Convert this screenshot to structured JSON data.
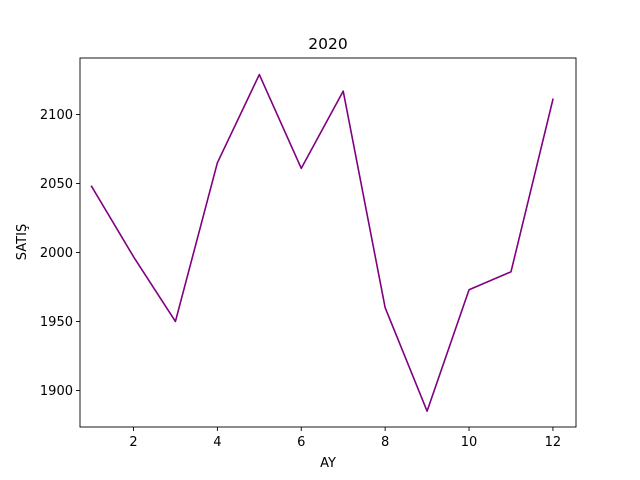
{
  "chart_data": {
    "type": "line",
    "title": "2020",
    "xlabel": "AY",
    "ylabel": "SATIŞ",
    "x": [
      1,
      2,
      3,
      4,
      5,
      6,
      7,
      8,
      9,
      10,
      11,
      12
    ],
    "series": [
      {
        "color": "#800080",
        "values": [
          2048,
          1997,
          1950,
          2065,
          2129,
          2061,
          2117,
          1960,
          1885,
          1973,
          1986,
          2111
        ]
      }
    ],
    "xlim": [
      0.725,
      12.55
    ],
    "ylim": [
      1873.5,
      2141
    ],
    "xticks": [
      2,
      4,
      6,
      8,
      10,
      12
    ],
    "yticks": [
      1900,
      1950,
      2000,
      2050,
      2100
    ],
    "grid": false,
    "legend": "none"
  }
}
